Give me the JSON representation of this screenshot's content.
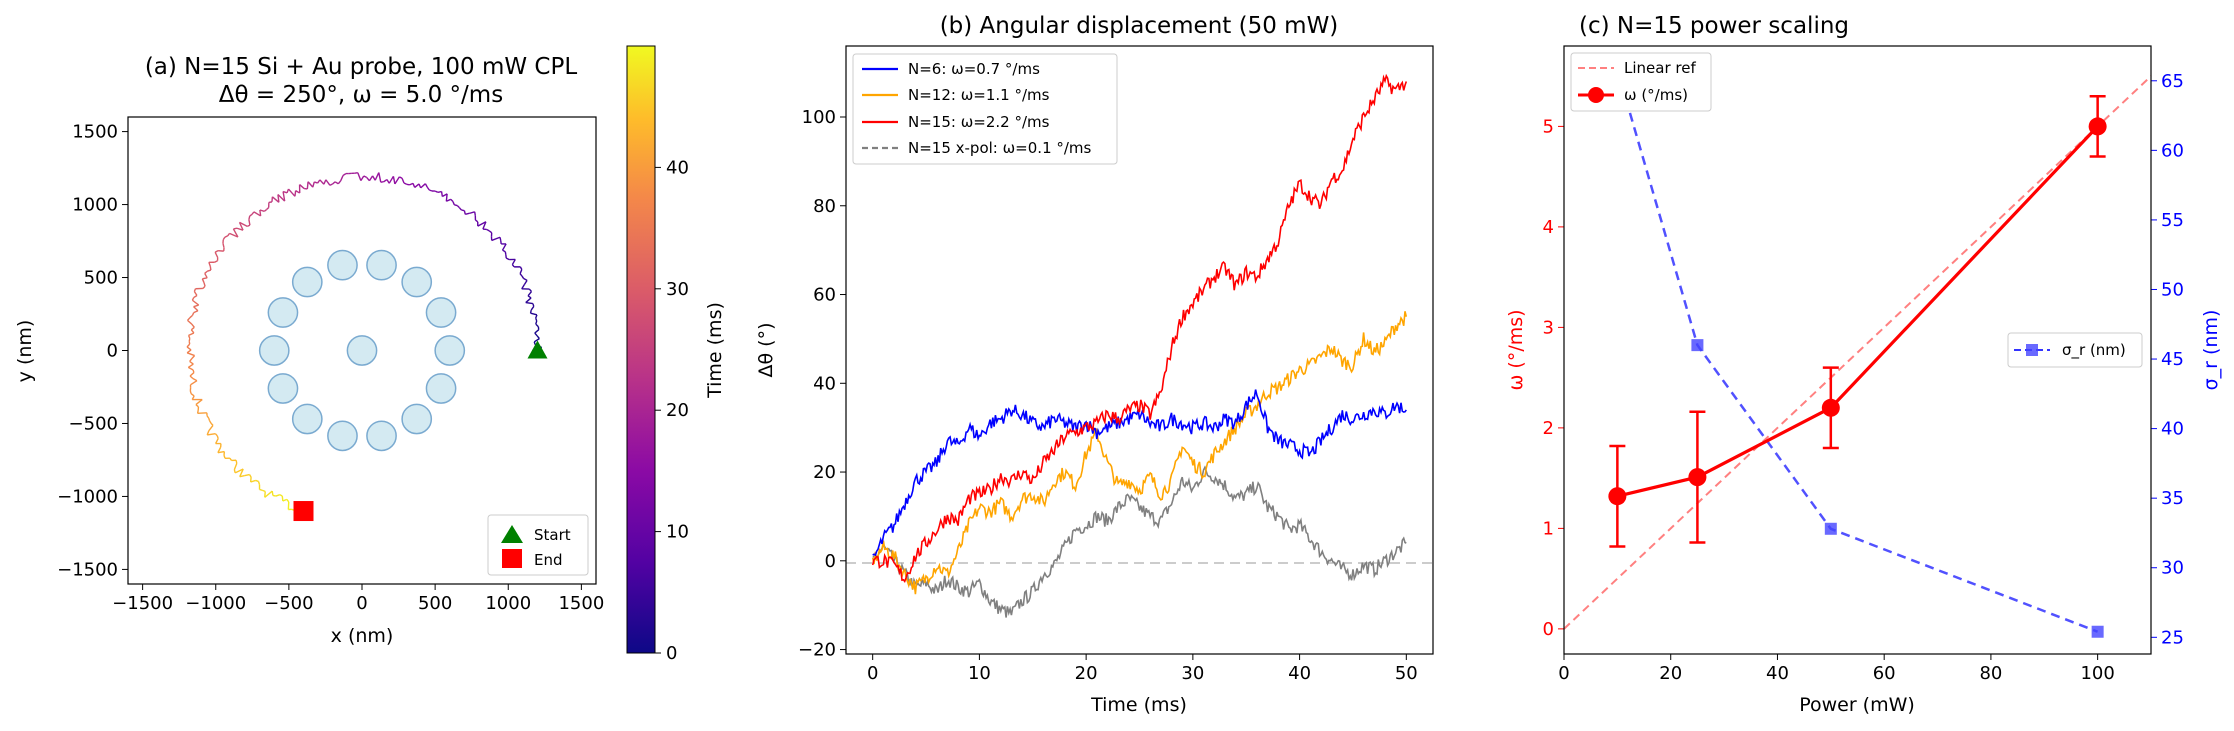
{
  "chart_data": [
    {
      "type": "scatter",
      "title": "(a) N=15 Si + Au probe, 100 mW CPL",
      "subtitle": "Δθ = 250°, ω = 5.0 °/ms",
      "xlabel": "x (nm)",
      "ylabel": "y (nm)",
      "xlim": [
        -1600,
        1600
      ],
      "ylim": [
        -1600,
        1600
      ],
      "xticks": [
        -1500,
        -1000,
        -500,
        0,
        500,
        1000,
        1500
      ],
      "yticks": [
        -1500,
        -1000,
        -500,
        0,
        500,
        1000,
        1500
      ],
      "xticklabels": [
        "−1500",
        "−1000",
        "−500",
        "0",
        "500",
        "1000",
        "1500"
      ],
      "yticklabels": [
        "−1500",
        "−1000",
        "−500",
        "0",
        "500",
        "1000",
        "1500"
      ],
      "colorbar": {
        "label": "Time (ms)",
        "range": [
          0,
          50
        ],
        "ticks": [
          0,
          10,
          20,
          30,
          40
        ],
        "colormap": "plasma"
      },
      "particle_ring": {
        "count": 14,
        "radius_nm": 600,
        "particle_radius_nm": 100,
        "center_particle": true,
        "color": "#d4eaf2",
        "edge": "#7aaad0"
      },
      "trajectory": {
        "start_xy": [
          1200,
          0
        ],
        "end_xy": [
          -400,
          -1100
        ],
        "start_radius_nm": 1200,
        "end_radius_nm": 1170,
        "rotation_deg": 250,
        "duration_ms": 50
      },
      "legend": [
        {
          "label": "Start",
          "marker": "triangle",
          "color": "#008000"
        },
        {
          "label": "End",
          "marker": "square",
          "color": "#ff0000"
        }
      ],
      "legend_position": "lower-right"
    },
    {
      "type": "line",
      "title": "(b) Angular displacement (50 mW)",
      "xlabel": "Time (ms)",
      "ylabel": "Δθ (°)",
      "xlim": [
        -2.5,
        52.5
      ],
      "ylim": [
        -21,
        116
      ],
      "xticks": [
        0,
        10,
        20,
        30,
        40,
        50
      ],
      "yticks": [
        -20,
        0,
        20,
        40,
        60,
        80,
        100
      ],
      "yticklabels": [
        "−20",
        "0",
        "20",
        "40",
        "60",
        "80",
        "100"
      ],
      "reference_line": {
        "y": 0,
        "style": "dashed",
        "color": "#cccccc"
      },
      "series": [
        {
          "name": "N=6: ω=0.7 °/ms",
          "color": "#0000ff",
          "dash": false,
          "x": [
            0,
            1,
            2,
            3,
            4,
            5,
            6,
            7,
            8,
            9,
            10,
            11,
            12,
            13,
            14,
            15,
            16,
            17,
            18,
            19,
            20,
            21,
            22,
            23,
            24,
            25,
            26,
            27,
            28,
            29,
            30,
            31,
            32,
            33,
            34,
            35,
            36,
            37,
            38,
            39,
            40,
            41,
            42,
            43,
            44,
            45,
            46,
            47,
            48,
            49,
            50
          ],
          "y": [
            0,
            5,
            8,
            13,
            18,
            20,
            22,
            27,
            26,
            30,
            28,
            31,
            32,
            34,
            33,
            31,
            30,
            32,
            31,
            30,
            31,
            29,
            30,
            31,
            32,
            33,
            31,
            30,
            32,
            31,
            30,
            31,
            30,
            32,
            31,
            35,
            38,
            30,
            27,
            26,
            25,
            24,
            27,
            30,
            33,
            32,
            33,
            34,
            33,
            35,
            34
          ]
        },
        {
          "name": "N=12: ω=1.1 °/ms",
          "color": "#ffa500",
          "dash": false,
          "x": [
            0,
            1,
            2,
            3,
            4,
            5,
            6,
            7,
            8,
            9,
            10,
            11,
            12,
            13,
            14,
            15,
            16,
            17,
            18,
            19,
            20,
            21,
            22,
            23,
            24,
            25,
            26,
            27,
            28,
            29,
            30,
            31,
            32,
            33,
            34,
            35,
            36,
            37,
            38,
            39,
            40,
            41,
            42,
            43,
            44,
            45,
            46,
            47,
            48,
            49,
            50
          ],
          "y": [
            0,
            3,
            1,
            -3,
            -6,
            -4,
            -1,
            -3,
            2,
            8,
            12,
            11,
            13,
            10,
            14,
            15,
            13,
            18,
            20,
            17,
            24,
            29,
            22,
            17,
            18,
            16,
            19,
            15,
            18,
            26,
            22,
            20,
            24,
            27,
            30,
            33,
            35,
            38,
            39,
            41,
            43,
            44,
            46,
            48,
            45,
            44,
            50,
            47,
            49,
            53,
            55
          ]
        },
        {
          "name": "N=15: ω=2.2 °/ms",
          "color": "#ff0000",
          "dash": false,
          "x": [
            0,
            1,
            2,
            3,
            4,
            5,
            6,
            7,
            8,
            9,
            10,
            11,
            12,
            13,
            14,
            15,
            16,
            17,
            18,
            19,
            20,
            21,
            22,
            23,
            24,
            25,
            26,
            27,
            28,
            29,
            30,
            31,
            32,
            33,
            34,
            35,
            36,
            37,
            38,
            39,
            40,
            41,
            42,
            43,
            44,
            45,
            46,
            47,
            48,
            49,
            50
          ],
          "y": [
            0,
            0,
            -1,
            -4,
            1,
            4,
            7,
            10,
            9,
            14,
            15,
            16,
            19,
            18,
            20,
            18,
            22,
            25,
            28,
            29,
            30,
            31,
            33,
            32,
            34,
            35,
            33,
            38,
            48,
            55,
            58,
            61,
            64,
            66,
            62,
            65,
            64,
            68,
            72,
            80,
            85,
            82,
            80,
            86,
            88,
            95,
            100,
            104,
            108,
            106,
            108
          ]
        },
        {
          "name": "N=15 x-pol: ω=0.1 °/ms",
          "color": "#808080",
          "dash": true,
          "x": [
            0,
            1,
            2,
            3,
            4,
            5,
            6,
            7,
            8,
            9,
            10,
            11,
            12,
            13,
            14,
            15,
            16,
            17,
            18,
            19,
            20,
            21,
            22,
            23,
            24,
            25,
            26,
            27,
            28,
            29,
            30,
            31,
            32,
            33,
            34,
            35,
            36,
            37,
            38,
            39,
            40,
            41,
            42,
            43,
            44,
            45,
            46,
            47,
            48,
            49,
            50
          ],
          "y": [
            0,
            3,
            0,
            -3,
            -6,
            -5,
            -7,
            -4,
            -6,
            -7,
            -5,
            -9,
            -11,
            -12,
            -9,
            -7,
            -3,
            -1,
            3,
            7,
            8,
            10,
            9,
            12,
            14,
            12,
            10,
            9,
            13,
            18,
            16,
            20,
            19,
            17,
            14,
            15,
            17,
            12,
            10,
            7,
            8,
            5,
            2,
            0,
            -2,
            -3,
            -1,
            -2,
            0,
            2,
            4
          ]
        }
      ],
      "legend_position": "top-left"
    },
    {
      "type": "line",
      "title": "(c) N=15 power scaling",
      "xlabel": "Power (mW)",
      "ylabel": "ω (°/ms)",
      "ylabel_right": "σ_r (nm)",
      "xlim": [
        0,
        110
      ],
      "ylim": [
        -0.25,
        5.8
      ],
      "ylim_right": [
        23.8,
        67.5
      ],
      "xticks": [
        0,
        20,
        40,
        60,
        80,
        100
      ],
      "yticks": [
        0,
        1,
        2,
        3,
        4,
        5
      ],
      "yticks_right": [
        25,
        30,
        35,
        40,
        45,
        50,
        55,
        60,
        65
      ],
      "series": [
        {
          "name": "Linear ref",
          "axis": "left",
          "color": "#ff8080",
          "dash": true,
          "x": [
            0,
            110
          ],
          "y": [
            0,
            5.5
          ]
        },
        {
          "name": "ω (°/ms)",
          "axis": "left",
          "color": "#ff0000",
          "dash": false,
          "marker": "circle",
          "x": [
            10,
            25,
            50,
            100
          ],
          "y": [
            1.32,
            1.51,
            2.2,
            5.0
          ],
          "error": [
            0.5,
            0.65,
            0.4,
            0.3
          ]
        },
        {
          "name": "σ_r (nm)",
          "axis": "right",
          "color": "#3333ff",
          "dash": true,
          "marker": "square",
          "x": [
            10,
            25,
            50,
            100
          ],
          "y": [
            65.8,
            46.0,
            32.8,
            25.4
          ]
        }
      ],
      "legend_positions": {
        "left_axis": "top-left",
        "right_axis": "center-right"
      }
    }
  ]
}
